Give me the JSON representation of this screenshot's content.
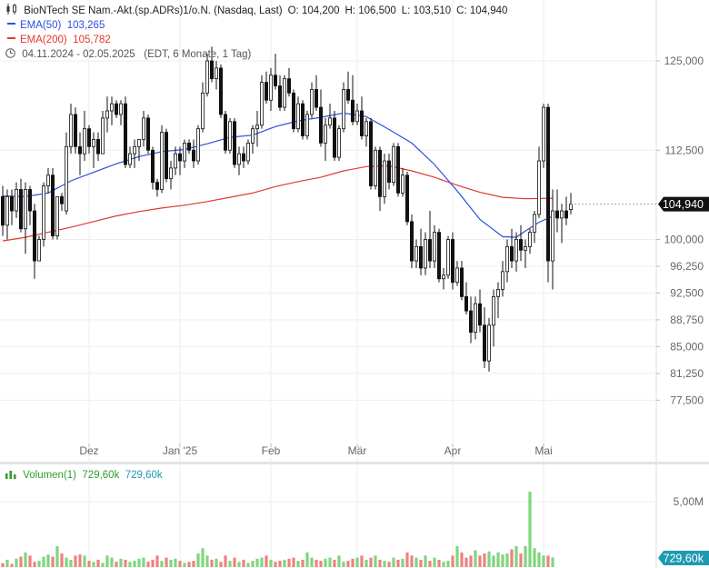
{
  "header": {
    "title": "BioNTech SE Nam.-Akt.(sp.ADRs)1/o.N. (Nasdaq, Last)",
    "ohlc": {
      "o": "O: 104,200",
      "h": "H: 106,500",
      "l": "L: 103,510",
      "c": "C: 104,940"
    },
    "ema50": {
      "label": "EMA(50)",
      "value": "103,265",
      "color": "#2b4ee0"
    },
    "ema200": {
      "label": "EMA(200)",
      "value": "105,782",
      "color": "#e0392b"
    },
    "range": "04.11.2024 - 02.05.2025",
    "range_info": "(EDT, 6 Monate, 1 Tag)"
  },
  "volume_header": {
    "label": "Volumen(1)",
    "value1": "729,60k",
    "value2": "729,60k"
  },
  "colors": {
    "up": "#ffffff",
    "down": "#111111",
    "vol_up": "#7dd67d",
    "vol_down": "#f08080",
    "grid": "#eeeeee",
    "price_badge": "#111111",
    "vol_badge": "#1e9ab0"
  },
  "chart_data": [
    {
      "type": "candlestick",
      "title": "BioNTech SE Nam.-Akt.(sp.ADRs)1/o.N. (Nasdaq, Last)",
      "price_label": "104,940",
      "y_ticks": [
        {
          "v": 125,
          "label": "125,000"
        },
        {
          "v": 112.5,
          "label": "112,500"
        },
        {
          "v": 100,
          "label": "100,000"
        },
        {
          "v": 96.25,
          "label": "96,250"
        },
        {
          "v": 92.5,
          "label": "92,500"
        },
        {
          "v": 88.75,
          "label": "88,750"
        },
        {
          "v": 85,
          "label": "85,000"
        },
        {
          "v": 81.25,
          "label": "81,250"
        },
        {
          "v": 77.5,
          "label": "77,500"
        }
      ],
      "x_ticks": [
        {
          "label": "Dez",
          "i": 19
        },
        {
          "label": "Jan '25",
          "i": 39
        },
        {
          "label": "Feb",
          "i": 59
        },
        {
          "label": "Mär",
          "i": 78
        },
        {
          "label": "Apr",
          "i": 99
        },
        {
          "label": "Mai",
          "i": 119
        }
      ],
      "candles": [
        [
          106,
          107.5,
          100.5,
          102
        ],
        [
          102,
          107,
          100,
          106
        ],
        [
          106,
          107,
          102,
          104
        ],
        [
          104,
          108,
          103,
          107
        ],
        [
          107,
          108.5,
          101,
          101.5
        ],
        [
          101.5,
          108,
          98,
          107
        ],
        [
          107,
          107.5,
          102,
          104
        ],
        [
          104,
          105,
          94.5,
          97
        ],
        [
          97,
          100.5,
          97,
          100
        ],
        [
          100,
          108,
          99,
          107.5
        ],
        [
          107.5,
          110,
          106.5,
          109
        ],
        [
          109,
          110,
          100,
          100.5
        ],
        [
          100.5,
          106,
          100,
          106
        ],
        [
          106,
          106.5,
          104,
          105
        ],
        [
          104,
          115,
          103.5,
          113
        ],
        [
          113,
          119,
          112,
          117.5
        ],
        [
          117.5,
          118.5,
          112,
          113
        ],
        [
          113,
          115,
          109,
          112
        ],
        [
          112,
          118,
          111,
          115.5
        ],
        [
          115.5,
          116,
          112,
          113
        ],
        [
          113,
          115,
          110,
          114
        ],
        [
          114,
          115,
          111,
          112
        ],
        [
          112,
          118,
          112,
          117
        ],
        [
          117,
          120,
          115,
          118
        ],
        [
          118,
          120,
          116,
          119
        ],
        [
          119,
          119.5,
          117,
          117.5
        ],
        [
          117.5,
          119.5,
          116,
          119
        ],
        [
          119,
          120,
          110,
          110.5
        ],
        [
          110.5,
          113,
          110,
          112
        ],
        [
          112,
          114,
          110,
          113
        ],
        [
          113,
          114,
          111,
          114
        ],
        [
          114,
          118,
          113,
          117
        ],
        [
          117,
          117.5,
          112,
          112.5
        ],
        [
          112.5,
          113,
          107,
          108
        ],
        [
          108,
          108.5,
          106,
          107
        ],
        [
          107,
          116,
          106.5,
          115
        ],
        [
          115,
          115.5,
          108,
          108.5
        ],
        [
          108.5,
          111,
          107,
          110
        ],
        [
          110,
          113,
          109,
          112
        ],
        [
          112,
          113,
          109,
          111
        ],
        [
          111,
          114,
          110,
          113.5
        ],
        [
          113.5,
          114,
          112,
          112.5
        ],
        [
          112.5,
          114,
          110,
          111
        ],
        [
          111,
          116,
          110.5,
          115.5
        ],
        [
          115.5,
          122,
          115,
          120.5
        ],
        [
          120.5,
          126,
          120,
          125
        ],
        [
          125,
          127,
          122,
          122.5
        ],
        [
          122.5,
          125,
          121,
          124
        ],
        [
          124,
          124.5,
          117,
          117.5
        ],
        [
          117.5,
          118,
          112,
          112.5
        ],
        [
          112.5,
          117,
          112,
          116.5
        ],
        [
          116.5,
          117,
          110,
          110.5
        ],
        [
          110.5,
          113,
          109,
          112
        ],
        [
          112,
          113,
          110,
          111
        ],
        [
          111,
          114,
          110.5,
          113.5
        ],
        [
          113.5,
          116,
          112,
          115.5
        ],
        [
          115.5,
          118,
          113,
          116
        ],
        [
          116,
          123,
          115.5,
          122
        ],
        [
          122,
          123.5,
          119,
          119.5
        ],
        [
          119.5,
          124,
          118,
          123
        ],
        [
          123,
          126,
          121,
          121.5
        ],
        [
          121.5,
          123,
          118,
          118.5
        ],
        [
          118.5,
          123,
          118,
          122.5
        ],
        [
          122.5,
          124,
          120,
          120.5
        ],
        [
          120.5,
          121,
          115,
          115.5
        ],
        [
          115.5,
          120,
          115,
          119
        ],
        [
          119,
          119.5,
          114,
          114.5
        ],
        [
          114.5,
          118,
          114,
          117.5
        ],
        [
          117.5,
          122,
          117,
          121
        ],
        [
          121,
          123,
          118,
          118.5
        ],
        [
          118.5,
          121,
          113,
          113.5
        ],
        [
          113.5,
          117,
          111,
          116
        ],
        [
          116,
          119,
          115.5,
          117
        ],
        [
          117,
          118,
          111,
          111.5
        ],
        [
          111.5,
          116,
          111,
          115.5
        ],
        [
          115.5,
          122,
          115,
          121
        ],
        [
          121,
          123.5,
          119,
          119.5
        ],
        [
          119.5,
          123,
          116,
          116.5
        ],
        [
          116.5,
          119,
          116,
          118
        ],
        [
          118,
          120,
          114,
          114.5
        ],
        [
          114.5,
          117,
          113,
          116.5
        ],
        [
          116.5,
          117,
          107,
          107.5
        ],
        [
          107.5,
          113,
          107,
          112.5
        ],
        [
          112.5,
          113,
          104,
          106
        ],
        [
          106,
          112,
          105,
          111
        ],
        [
          111,
          112,
          107,
          108
        ],
        [
          108,
          113.5,
          107.5,
          113
        ],
        [
          113,
          113.5,
          106,
          106.5
        ],
        [
          106.5,
          110,
          106,
          109
        ],
        [
          109,
          109.5,
          102,
          102.5
        ],
        [
          102.5,
          103.5,
          96,
          97
        ],
        [
          97,
          100,
          96,
          99
        ],
        [
          99,
          101.5,
          95,
          96
        ],
        [
          96,
          101,
          95,
          100
        ],
        [
          100,
          104,
          96,
          97
        ],
        [
          97,
          102,
          96,
          101
        ],
        [
          101,
          101.5,
          94,
          94.5
        ],
        [
          94.5,
          96,
          93,
          95
        ],
        [
          95,
          100.5,
          94.5,
          100
        ],
        [
          100,
          101,
          93,
          94
        ],
        [
          94,
          97,
          93.5,
          96
        ],
        [
          96,
          97,
          91.5,
          92
        ],
        [
          92,
          94,
          89.5,
          90
        ],
        [
          90,
          92,
          85.5,
          87
        ],
        [
          87,
          92,
          86,
          91
        ],
        [
          91,
          93,
          87,
          88
        ],
        [
          88,
          90.5,
          82,
          83
        ],
        [
          83,
          89,
          81.5,
          88
        ],
        [
          88,
          93,
          85,
          92
        ],
        [
          92,
          94,
          89,
          93
        ],
        [
          93,
          97,
          92,
          95.5
        ],
        [
          95.5,
          100,
          94,
          99
        ],
        [
          99,
          101.5,
          96,
          97
        ],
        [
          97,
          101,
          95.5,
          100
        ],
        [
          100,
          102,
          97,
          98.5
        ],
        [
          98.5,
          100,
          96,
          99
        ],
        [
          99,
          101.5,
          98,
          101
        ],
        [
          101,
          104,
          99.5,
          103.5
        ],
        [
          103.5,
          113,
          103,
          111
        ],
        [
          111,
          119,
          110,
          118.5
        ],
        [
          118.5,
          119,
          94,
          97
        ],
        [
          97,
          107,
          93,
          104
        ],
        [
          104,
          107,
          101,
          103
        ],
        [
          103,
          105,
          99.5,
          104
        ],
        [
          104,
          106,
          102,
          103
        ],
        [
          104.2,
          106.5,
          103.51,
          104.94
        ]
      ],
      "ema50": [
        [
          0,
          106.1
        ],
        [
          5,
          106
        ],
        [
          10,
          106.5
        ],
        [
          15,
          108.2
        ],
        [
          20,
          109.4
        ],
        [
          25,
          110.6
        ],
        [
          30,
          111.6
        ],
        [
          35,
          112.3
        ],
        [
          40,
          112.6
        ],
        [
          45,
          113.4
        ],
        [
          50,
          114.3
        ],
        [
          55,
          114.6
        ],
        [
          60,
          115.8
        ],
        [
          65,
          116.6
        ],
        [
          70,
          117.1
        ],
        [
          75,
          117.7
        ],
        [
          80,
          117.2
        ],
        [
          85,
          115.4
        ],
        [
          90,
          113.5
        ],
        [
          95,
          110.5
        ],
        [
          100,
          106.8
        ],
        [
          105,
          102.8
        ],
        [
          110,
          100.4
        ],
        [
          113,
          100.3
        ],
        [
          115,
          101.2
        ],
        [
          118,
          102.4
        ],
        [
          121,
          103.27
        ]
      ],
      "ema200": [
        [
          0,
          99.8
        ],
        [
          5,
          100.3
        ],
        [
          10,
          101
        ],
        [
          15,
          101.7
        ],
        [
          20,
          102.5
        ],
        [
          25,
          103.3
        ],
        [
          30,
          103.9
        ],
        [
          35,
          104.4
        ],
        [
          40,
          104.8
        ],
        [
          45,
          105.3
        ],
        [
          50,
          105.9
        ],
        [
          55,
          106.5
        ],
        [
          60,
          107.4
        ],
        [
          65,
          108.1
        ],
        [
          70,
          108.7
        ],
        [
          75,
          109.6
        ],
        [
          80,
          110.2
        ],
        [
          85,
          110.3
        ],
        [
          90,
          109.6
        ],
        [
          95,
          108.7
        ],
        [
          100,
          107.6
        ],
        [
          105,
          106.6
        ],
        [
          110,
          105.9
        ],
        [
          115,
          105.7
        ],
        [
          121,
          105.78
        ]
      ]
    },
    {
      "type": "bar",
      "title": "Volumen(1)",
      "y_ticks": [
        {
          "v": 5000,
          "label": "5,00M"
        }
      ],
      "value_label": "729,60k",
      "ylim": [
        0,
        6400
      ],
      "values": [
        300,
        560,
        240,
        650,
        800,
        1120,
        880,
        400,
        480,
        800,
        960,
        800,
        1600,
        1040,
        720,
        560,
        880,
        960,
        880,
        480,
        400,
        560,
        320,
        880,
        720,
        400,
        640,
        560,
        400,
        480,
        640,
        720,
        400,
        560,
        880,
        480,
        720,
        560,
        640,
        480,
        320,
        400,
        480,
        1040,
        1440,
        880,
        560,
        640,
        400,
        880,
        480,
        720,
        400,
        560,
        320,
        480,
        640,
        720,
        880,
        560,
        400,
        480,
        560,
        640,
        720,
        480,
        560,
        1120,
        720,
        560,
        480,
        640,
        720,
        560,
        880,
        400,
        480,
        640,
        720,
        880,
        560,
        720,
        880,
        560,
        480,
        400,
        720,
        560,
        640,
        1120,
        880,
        720,
        560,
        880,
        480,
        720,
        560,
        400,
        480,
        880,
        1600,
        1120,
        720,
        880,
        1280,
        880,
        1040,
        1200,
        880,
        1120,
        960,
        1040,
        1360,
        1600,
        1040,
        1600,
        5760,
        1440,
        1120,
        880,
        880,
        730
      ]
    }
  ]
}
